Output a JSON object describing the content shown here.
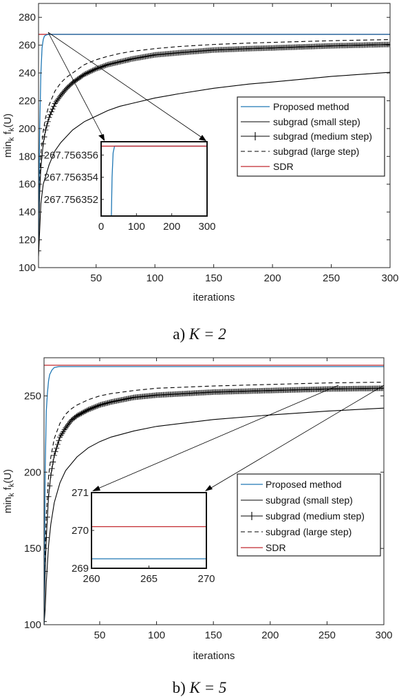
{
  "chart_data": [
    {
      "type": "line",
      "caption_prefix": "a)",
      "caption_math": "K = 2",
      "xlabel": "iterations",
      "ylabel": "min",
      "ylabel_sub": "k",
      "ylabel_mid": " f",
      "ylabel_sub2": "k",
      "ylabel_end": "(U)",
      "xlim": [
        1,
        300
      ],
      "ylim": [
        100,
        290
      ],
      "xticks": [
        "50",
        "100",
        "150",
        "200",
        "250",
        "300"
      ],
      "xtick_values": [
        50,
        100,
        150,
        200,
        250,
        300
      ],
      "yticks": [
        "100",
        "120",
        "140",
        "160",
        "180",
        "200",
        "220",
        "240",
        "260",
        "280"
      ],
      "ytick_values": [
        100,
        120,
        140,
        160,
        180,
        200,
        220,
        240,
        260,
        280
      ],
      "legend_position": "right",
      "series": [
        {
          "name": "Proposed method",
          "color": "#1f77b4",
          "style": "solid",
          "x": [
            1,
            2,
            3,
            4,
            5,
            6,
            8,
            10,
            300
          ],
          "y": [
            120,
            200,
            240,
            258,
            264,
            266.5,
            267.5,
            267.756,
            267.756
          ]
        },
        {
          "name": "subgrad (small step)",
          "color": "#000000",
          "style": "solid",
          "x": [
            1,
            3,
            5,
            10,
            15,
            20,
            30,
            40,
            50,
            60,
            70,
            80,
            100,
            120,
            150,
            180,
            200,
            225,
            250,
            275,
            300
          ],
          "y": [
            108,
            146,
            160,
            174,
            184,
            190,
            199,
            205,
            209,
            213,
            216,
            218,
            222,
            225,
            229,
            232,
            233.5,
            235.5,
            237.5,
            239,
            240.5
          ]
        },
        {
          "name": "subgrad (medium step)",
          "color": "#000000",
          "style": "marker-plus",
          "x": [
            1,
            2,
            3,
            5,
            7,
            10,
            15,
            20,
            25,
            30,
            40,
            50,
            60,
            70,
            80,
            100,
            120,
            150,
            180,
            200,
            250,
            300
          ],
          "y": [
            112,
            155,
            172,
            189,
            199,
            208,
            218,
            224,
            229,
            233,
            239,
            243,
            246,
            248,
            250,
            253,
            254.5,
            256.5,
            257.5,
            258,
            259.5,
            260.5
          ]
        },
        {
          "name": "subgrad (large step)",
          "color": "#000000",
          "style": "dashed",
          "x": [
            1,
            2,
            3,
            5,
            7,
            10,
            15,
            20,
            25,
            30,
            40,
            50,
            60,
            70,
            80,
            100,
            120,
            150,
            180,
            200,
            250,
            300
          ],
          "y": [
            118,
            165,
            182,
            198,
            208,
            217,
            227,
            233,
            237,
            240,
            246,
            249.5,
            252,
            254,
            255.5,
            257.5,
            259,
            260.5,
            261.5,
            262,
            263.2,
            264
          ]
        },
        {
          "name": "SDR",
          "color": "#c1272d",
          "style": "solid",
          "x": [
            1,
            300
          ],
          "y": [
            267.756,
            267.756
          ]
        }
      ],
      "inset": {
        "xlim": [
          0,
          300
        ],
        "ylim": [
          267.7563505,
          267.7563572
        ],
        "xticks": [
          "0",
          "100",
          "200",
          "300"
        ],
        "xtick_values": [
          0,
          100,
          200,
          300
        ],
        "yticks": [
          "267.756352",
          "267.756354",
          "267.756356"
        ],
        "ytick_values": [
          267.756352,
          267.756354,
          267.756356
        ],
        "series": [
          {
            "name": "Proposed method",
            "color": "#1f77b4",
            "x": [
              29,
              31,
              34,
              38,
              300
            ],
            "y": [
              267.7563505,
              267.756354,
              267.7563562,
              267.7563568,
              267.7563568
            ]
          },
          {
            "name": "SDR",
            "color": "#c1272d",
            "x": [
              0,
              300
            ],
            "y": [
              267.7563568,
              267.7563568
            ]
          }
        ]
      }
    },
    {
      "type": "line",
      "caption_prefix": "b)",
      "caption_math": "K = 5",
      "xlabel": "iterations",
      "ylabel": "min",
      "ylabel_sub": "k",
      "ylabel_mid": " f",
      "ylabel_sub2": "k",
      "ylabel_end": "(U)",
      "xlim": [
        1,
        300
      ],
      "ylim": [
        100,
        275
      ],
      "xticks": [
        "50",
        "100",
        "150",
        "200",
        "250",
        "300"
      ],
      "xtick_values": [
        50,
        100,
        150,
        200,
        250,
        300
      ],
      "yticks": [
        "100",
        "150",
        "200",
        "250"
      ],
      "ytick_values": [
        100,
        150,
        200,
        250
      ],
      "legend_position": "right",
      "series": [
        {
          "name": "Proposed method",
          "color": "#1f77b4",
          "style": "solid",
          "x": [
            1,
            2,
            3,
            4,
            5,
            6,
            8,
            10,
            14,
            300
          ],
          "y": [
            100,
            200,
            240,
            252,
            260,
            264,
            267,
            268.6,
            269.2,
            269.2
          ]
        },
        {
          "name": "subgrad (small step)",
          "color": "#000000",
          "style": "solid",
          "x": [
            1,
            2,
            3,
            5,
            7,
            10,
            15,
            20,
            30,
            40,
            50,
            60,
            80,
            100,
            150,
            200,
            250,
            300
          ],
          "y": [
            100,
            110,
            128,
            152,
            166,
            180,
            193,
            201,
            210,
            216,
            220,
            223,
            227,
            230,
            234.5,
            237.5,
            240,
            242
          ]
        },
        {
          "name": "subgrad (medium step)",
          "color": "#000000",
          "style": "marker-plus",
          "x": [
            1,
            2,
            3,
            5,
            7,
            10,
            15,
            20,
            25,
            30,
            40,
            50,
            60,
            80,
            100,
            150,
            200,
            250,
            300
          ],
          "y": [
            102,
            135,
            157,
            184,
            198,
            211,
            223,
            229,
            234,
            237,
            241,
            244,
            246,
            249,
            250.5,
            252.5,
            253.5,
            254.5,
            255
          ]
        },
        {
          "name": "subgrad (large step)",
          "color": "#000000",
          "style": "dashed",
          "x": [
            1,
            2,
            3,
            5,
            7,
            10,
            15,
            20,
            25,
            30,
            40,
            50,
            60,
            80,
            100,
            150,
            200,
            250,
            300
          ],
          "y": [
            105,
            150,
            172,
            197,
            210,
            222,
            232,
            238,
            241.5,
            244,
            247.5,
            250,
            251.5,
            253.5,
            255,
            256.5,
            257.5,
            258.5,
            259
          ]
        },
        {
          "name": "SDR",
          "color": "#c1272d",
          "style": "solid",
          "x": [
            1,
            300
          ],
          "y": [
            270.1,
            270.1
          ]
        }
      ],
      "inset": {
        "xlim": [
          260,
          270
        ],
        "ylim": [
          269,
          271
        ],
        "xticks": [
          "260",
          "265",
          "270"
        ],
        "xtick_values": [
          260,
          265,
          270
        ],
        "yticks": [
          "269",
          "270",
          "271"
        ],
        "ytick_values": [
          269,
          270,
          271
        ],
        "series": [
          {
            "name": "Proposed method",
            "color": "#1f77b4",
            "x": [
              260,
              270
            ],
            "y": [
              269.25,
              269.25
            ]
          },
          {
            "name": "SDR",
            "color": "#c1272d",
            "x": [
              260,
              270
            ],
            "y": [
              270.1,
              270.1
            ]
          }
        ]
      }
    }
  ]
}
